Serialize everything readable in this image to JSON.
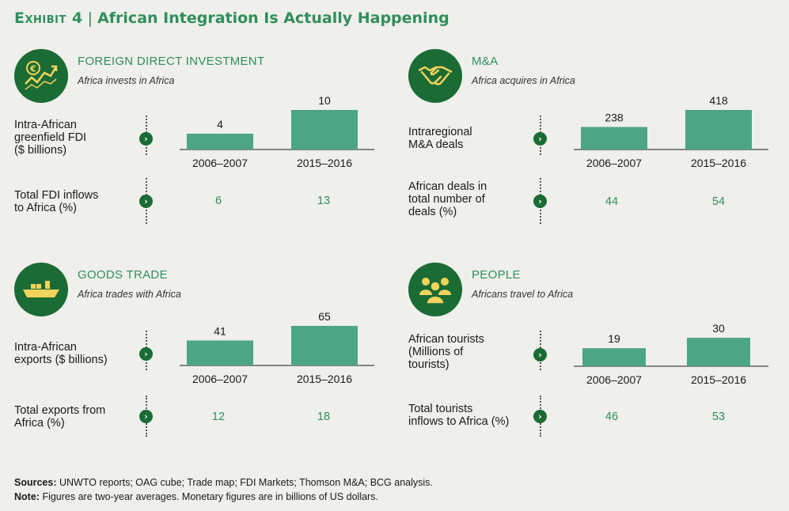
{
  "header": {
    "exhibit": "Exhibit 4",
    "separator": "|",
    "title": "African Integration Is Actually Happening"
  },
  "colors": {
    "accent": "#2f8f5b",
    "dark_green": "#1a6b34",
    "bar": "#4ca583",
    "background": "#efefeb"
  },
  "panels": [
    {
      "icon": "euro-growth-chart-icon",
      "title": "FOREIGN DIRECT INVESTMENT",
      "subtitle": "Africa invests in Africa",
      "metric_label": "Intra-African\ngreenfield FDI\n($ billions)",
      "secondary_label": "Total FDI inflows\nto Africa (%)",
      "secondary_values": [
        "6",
        "13"
      ]
    },
    {
      "icon": "handshake-icon",
      "title": "M&A",
      "subtitle": "Africa acquires in Africa",
      "metric_label": "Intraregional\nM&A deals",
      "secondary_label": "African deals in\ntotal number of\ndeals (%)",
      "secondary_values": [
        "44",
        "54"
      ]
    },
    {
      "icon": "cargo-ship-icon",
      "title": "GOODS TRADE",
      "subtitle": "Africa trades with Africa",
      "metric_label": "Intra-African\nexports ($ billions)",
      "secondary_label": "Total exports from\nAfrica (%)",
      "secondary_values": [
        "12",
        "18"
      ]
    },
    {
      "icon": "people-group-icon",
      "title": "PEOPLE",
      "subtitle": "Africans travel to Africa",
      "metric_label": "African tourists\n(Millions of\ntourists)",
      "secondary_label": "Total tourists\ninflows to Africa (%)",
      "secondary_values": [
        "46",
        "53"
      ]
    }
  ],
  "chart_data": [
    {
      "type": "bar",
      "title": "Intra-African greenfield FDI ($ billions)",
      "categories": [
        "2006–2007",
        "2015–2016"
      ],
      "values": [
        4,
        10
      ],
      "ylim": [
        0,
        10
      ]
    },
    {
      "type": "bar",
      "title": "Intraregional M&A deals",
      "categories": [
        "2006–2007",
        "2015–2016"
      ],
      "values": [
        238,
        418
      ],
      "ylim": [
        0,
        418
      ]
    },
    {
      "type": "bar",
      "title": "Intra-African exports ($ billions)",
      "categories": [
        "2006–2007",
        "2015–2016"
      ],
      "values": [
        41,
        65
      ],
      "ylim": [
        0,
        65
      ]
    },
    {
      "type": "bar",
      "title": "African tourists (Millions of tourists)",
      "categories": [
        "2006–2007",
        "2015–2016"
      ],
      "values": [
        19,
        30
      ],
      "ylim": [
        0,
        30
      ]
    }
  ],
  "footer": {
    "sources_label": "Sources:",
    "sources": "UNWTO reports; OAG cube; Trade map; FDI Markets; Thomson M&A; BCG analysis.",
    "note_label": "Note:",
    "note": "Figures are two-year averages. Monetary figures are in billions of US dollars."
  }
}
